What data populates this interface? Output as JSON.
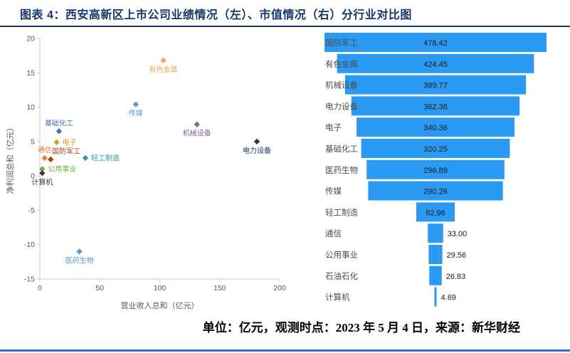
{
  "header": {
    "title": "图表 4：西安高新区上市公司业绩情况（左）、市值情况（右）分行业对比图"
  },
  "footer": {
    "note": "单位：亿元，观测时点：2023 年 5 月 4 日，来源：新华财经"
  },
  "colors": {
    "title_text": "#15366b",
    "header_rule": "#1f3864",
    "bottom_rule": "#2e75b6",
    "bar_fill": "#2b9af3",
    "axis_text": "#595959",
    "axis_line": "#c9c9c9",
    "value_text": "#1a1a1a",
    "category_text": "#4d4d4d"
  },
  "chart_data": [
    {
      "type": "scatter",
      "panel": "left",
      "title": "",
      "xlabel": "营业收入总和（亿元）",
      "ylabel": "净利润总和（亿元）",
      "xlim": [
        0,
        200
      ],
      "ylim": [
        -15,
        20
      ],
      "xticks": [
        0,
        50,
        100,
        150,
        200
      ],
      "yticks": [
        -15,
        -10,
        -5,
        0,
        5,
        10,
        15,
        20
      ],
      "grid": false,
      "points": [
        {
          "label": "有色金属",
          "x": 103,
          "y": 16.8,
          "color": "#f2a45c",
          "label_pos": "below"
        },
        {
          "label": "传媒",
          "x": 80,
          "y": 10.4,
          "color": "#5b9bd5",
          "label_pos": "below"
        },
        {
          "label": "机械设备",
          "x": 131,
          "y": 7.5,
          "color": "#8064a2",
          "label_pos": "below"
        },
        {
          "label": "电力设备",
          "x": 181,
          "y": 5.0,
          "color": "#1f3864",
          "label_pos": "below"
        },
        {
          "label": "基础化工",
          "x": 16,
          "y": 6.5,
          "color": "#4472c4",
          "label_pos": "above"
        },
        {
          "label": "电子",
          "x": 14,
          "y": 4.9,
          "color": "#c9a227",
          "label_pos": "right"
        },
        {
          "label": "通信",
          "x": 4,
          "y": 2.6,
          "color": "#ed7d31",
          "label_pos": "above"
        },
        {
          "label": "国防军工",
          "x": 9,
          "y": 2.4,
          "color": "#9e480e",
          "label_pos": "above-right"
        },
        {
          "label": "轻工制造",
          "x": 38,
          "y": 2.6,
          "color": "#2e9e8f",
          "label_pos": "right"
        },
        {
          "label": "公用事业",
          "x": 2,
          "y": 1.0,
          "color": "#70ad47",
          "label_pos": "right"
        },
        {
          "label": "计算机",
          "x": 2,
          "y": 0.4,
          "color": "#3b3b3b",
          "label_pos": "below"
        },
        {
          "label": "医药生物",
          "x": 33,
          "y": -11.0,
          "color": "#5b9bd5",
          "label_pos": "below"
        }
      ]
    },
    {
      "type": "funnel",
      "panel": "right",
      "categories": [
        "国防军工",
        "有色金属",
        "机械设备",
        "电力设备",
        "电子",
        "基础化工",
        "医药生物",
        "传媒",
        "轻工制造",
        "通信",
        "公用事业",
        "石油石化",
        "计算机"
      ],
      "values": [
        478.42,
        424.45,
        389.77,
        362.38,
        340.36,
        320.25,
        296.89,
        290.26,
        82.96,
        33.0,
        29.56,
        26.83,
        4.69
      ],
      "value_labels": [
        "478.42",
        "424.45",
        "389.77",
        "362.38",
        "340.36",
        "320.25",
        "296.89",
        "290.26",
        "82.96",
        "33.00",
        "29.56",
        "26.83",
        "4.69"
      ]
    }
  ]
}
